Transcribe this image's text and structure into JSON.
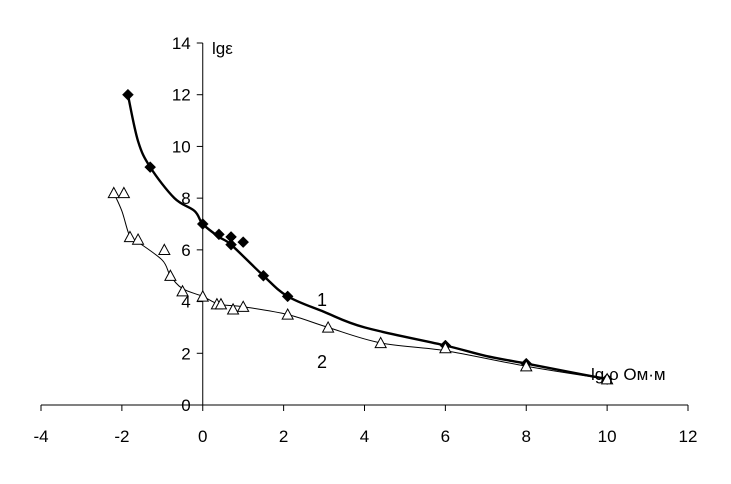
{
  "chart_data": {
    "type": "scatter",
    "ylabel": "lgε",
    "xlabel": "lg ρ Ом·м",
    "xlim": [
      -4,
      12
    ],
    "ylim": [
      0,
      14
    ],
    "x_ticks": [
      -4,
      -2,
      0,
      2,
      4,
      6,
      8,
      10,
      12
    ],
    "y_ticks": [
      0,
      2,
      4,
      6,
      8,
      10,
      12,
      14
    ],
    "grid": false,
    "series": [
      {
        "name": "1",
        "marker": "diamond",
        "color": "#000000",
        "points": [
          {
            "x": -1.85,
            "y": 12.0
          },
          {
            "x": -1.3,
            "y": 9.2
          },
          {
            "x": 0.0,
            "y": 7.0
          },
          {
            "x": 0.4,
            "y": 6.6
          },
          {
            "x": 0.7,
            "y": 6.5
          },
          {
            "x": 0.7,
            "y": 6.2
          },
          {
            "x": 1.0,
            "y": 6.3
          },
          {
            "x": 1.5,
            "y": 5.0
          },
          {
            "x": 2.1,
            "y": 4.2
          },
          {
            "x": 6.0,
            "y": 2.3
          },
          {
            "x": 8.0,
            "y": 1.6
          },
          {
            "x": 10.0,
            "y": 1.0
          }
        ],
        "curve": [
          {
            "x": -1.85,
            "y": 12.0
          },
          {
            "x": -1.6,
            "y": 10.2
          },
          {
            "x": -1.3,
            "y": 9.2
          },
          {
            "x": -0.7,
            "y": 8.0
          },
          {
            "x": -0.2,
            "y": 7.5
          },
          {
            "x": 0.0,
            "y": 7.0
          },
          {
            "x": 0.4,
            "y": 6.5
          },
          {
            "x": 0.7,
            "y": 6.2
          },
          {
            "x": 1.5,
            "y": 5.0
          },
          {
            "x": 2.1,
            "y": 4.2
          },
          {
            "x": 3.0,
            "y": 3.6
          },
          {
            "x": 4.0,
            "y": 3.0
          },
          {
            "x": 6.0,
            "y": 2.3
          },
          {
            "x": 7.0,
            "y": 1.9
          },
          {
            "x": 8.0,
            "y": 1.6
          },
          {
            "x": 9.0,
            "y": 1.3
          },
          {
            "x": 10.0,
            "y": 1.0
          }
        ]
      },
      {
        "name": "2",
        "marker": "triangle-open",
        "color": "#000000",
        "points": [
          {
            "x": -2.2,
            "y": 8.2
          },
          {
            "x": -1.95,
            "y": 8.2
          },
          {
            "x": -1.8,
            "y": 6.5
          },
          {
            "x": -1.6,
            "y": 6.4
          },
          {
            "x": -0.95,
            "y": 6.0
          },
          {
            "x": -0.8,
            "y": 5.0
          },
          {
            "x": -0.5,
            "y": 4.4
          },
          {
            "x": 0.0,
            "y": 4.2
          },
          {
            "x": 0.35,
            "y": 3.9
          },
          {
            "x": 0.45,
            "y": 3.9
          },
          {
            "x": 0.75,
            "y": 3.7
          },
          {
            "x": 1.0,
            "y": 3.8
          },
          {
            "x": 2.1,
            "y": 3.5
          },
          {
            "x": 3.1,
            "y": 3.0
          },
          {
            "x": 4.4,
            "y": 2.4
          },
          {
            "x": 6.0,
            "y": 2.2
          },
          {
            "x": 8.0,
            "y": 1.5
          },
          {
            "x": 10.0,
            "y": 1.0
          }
        ],
        "curve": [
          {
            "x": -2.2,
            "y": 8.2
          },
          {
            "x": -2.0,
            "y": 7.5
          },
          {
            "x": -1.8,
            "y": 6.5
          },
          {
            "x": -1.6,
            "y": 6.3
          },
          {
            "x": -1.0,
            "y": 5.6
          },
          {
            "x": -0.8,
            "y": 5.0
          },
          {
            "x": -0.5,
            "y": 4.5
          },
          {
            "x": 0.0,
            "y": 4.2
          },
          {
            "x": 0.4,
            "y": 3.9
          },
          {
            "x": 1.0,
            "y": 3.8
          },
          {
            "x": 2.1,
            "y": 3.5
          },
          {
            "x": 3.1,
            "y": 3.0
          },
          {
            "x": 4.4,
            "y": 2.4
          },
          {
            "x": 6.0,
            "y": 2.1
          },
          {
            "x": 8.0,
            "y": 1.5
          },
          {
            "x": 10.0,
            "y": 1.0
          }
        ]
      }
    ]
  }
}
